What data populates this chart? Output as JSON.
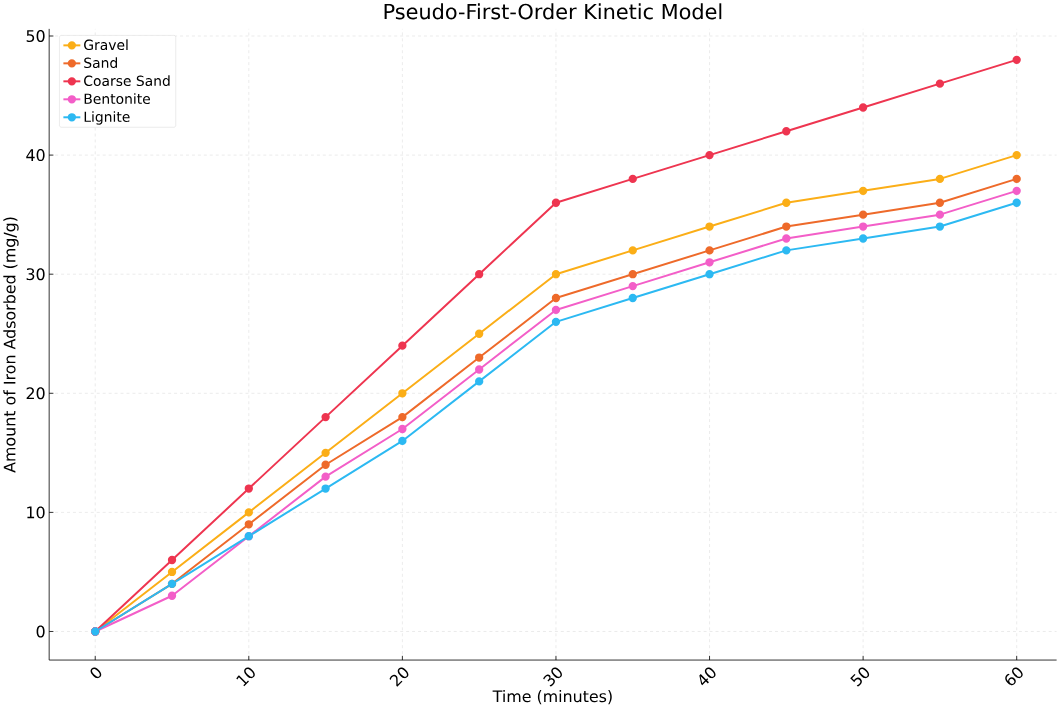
{
  "chart_data": {
    "type": "line",
    "title": "Pseudo-First-Order Kinetic Model",
    "xlabel": "Time (minutes)",
    "ylabel": "Amount of Iron Adsorbed (mg/g)",
    "x": [
      0,
      5,
      10,
      15,
      20,
      25,
      30,
      35,
      40,
      45,
      50,
      55,
      60
    ],
    "series": [
      {
        "name": "Gravel",
        "color": "#fbae17",
        "values": [
          0,
          5,
          10,
          15,
          20,
          25,
          30,
          32,
          34,
          36,
          37,
          38,
          40
        ]
      },
      {
        "name": "Sand",
        "color": "#ee6a2a",
        "values": [
          0,
          4,
          9,
          14,
          18,
          23,
          28,
          30,
          32,
          34,
          35,
          36,
          38
        ]
      },
      {
        "name": "Coarse Sand",
        "color": "#ee3550",
        "values": [
          0,
          6,
          12,
          18,
          24,
          30,
          36,
          38,
          40,
          42,
          44,
          46,
          48
        ]
      },
      {
        "name": "Bentonite",
        "color": "#f35ec8",
        "values": [
          0,
          3,
          8,
          13,
          17,
          22,
          27,
          29,
          31,
          33,
          34,
          35,
          37
        ]
      },
      {
        "name": "Lignite",
        "color": "#2cb9f2",
        "values": [
          0,
          4,
          8,
          12,
          16,
          21,
          26,
          28,
          30,
          32,
          33,
          34,
          36
        ]
      }
    ],
    "xlim": [
      -3,
      62.6
    ],
    "ylim": [
      -2.4,
      50.6
    ],
    "xticks": [
      0,
      10,
      20,
      30,
      40,
      50,
      60
    ],
    "yticks": [
      0,
      10,
      20,
      30,
      40,
      50
    ],
    "grid": true,
    "legend": "top left",
    "marker": "circle",
    "line_style": "solid"
  }
}
